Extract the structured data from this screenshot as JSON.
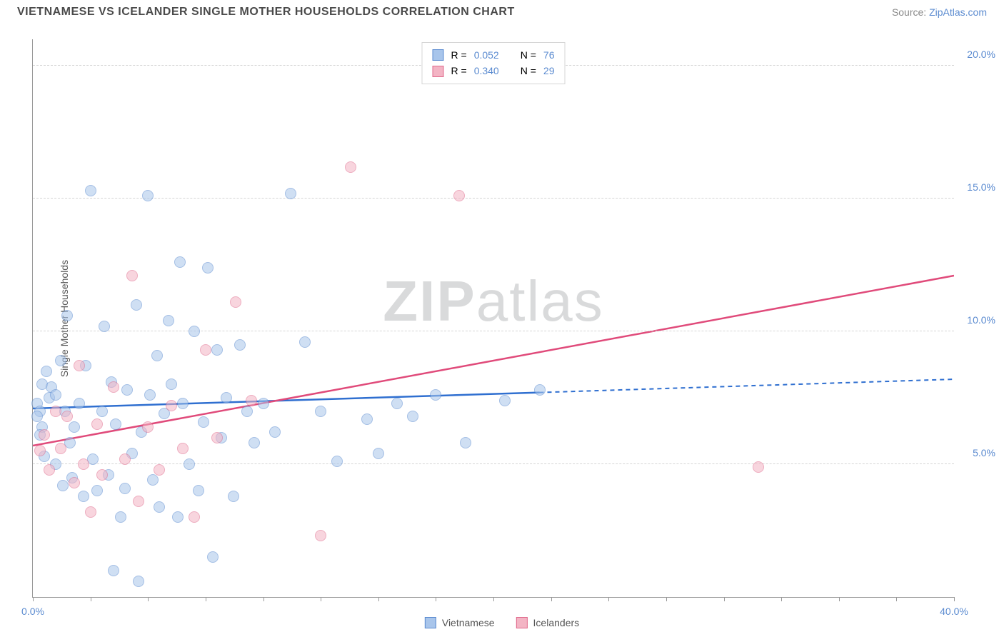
{
  "title_text": "VIETNAMESE VS ICELANDER SINGLE MOTHER HOUSEHOLDS CORRELATION CHART",
  "source_prefix": "Source: ",
  "source_link": "ZipAtlas.com",
  "ylabel_text": "Single Mother Households",
  "watermark_a": "ZIP",
  "watermark_b": "atlas",
  "chart": {
    "type": "scatter",
    "xlim": [
      0,
      40
    ],
    "ylim": [
      0,
      21
    ],
    "xtick_positions": [
      0,
      2.5,
      5,
      7.5,
      10,
      12.5,
      15,
      17.5,
      20,
      22.5,
      25,
      27.5,
      30,
      32.5,
      35,
      37.5,
      40
    ],
    "xtick_labels": [
      {
        "pos": 0,
        "label": "0.0%"
      },
      {
        "pos": 40,
        "label": "40.0%"
      }
    ],
    "ytick_gridlines": [
      5,
      10,
      15,
      20
    ],
    "ytick_labels": [
      {
        "pos": 5,
        "label": "5.0%"
      },
      {
        "pos": 10,
        "label": "10.0%"
      },
      {
        "pos": 15,
        "label": "15.0%"
      },
      {
        "pos": 20,
        "label": "20.0%"
      }
    ],
    "grid_color": "#d5d5d5",
    "axis_color": "#999999",
    "background_color": "#ffffff",
    "label_color": "#5b8bd0",
    "marker_radius": 8,
    "marker_opacity": 0.55
  },
  "series": [
    {
      "name": "Vietnamese",
      "fill_color": "#a8c5eb",
      "stroke_color": "#5b8bd0",
      "line_color": "#2f6fd0",
      "r_label": "R = ",
      "r_value": "0.052",
      "n_label": "N = ",
      "n_value": "76",
      "trend": {
        "x1": 0,
        "y1": 7.1,
        "x2_solid": 22,
        "y2_solid": 7.7,
        "x2_dash": 40,
        "y2_dash": 8.2
      },
      "points": [
        {
          "x": 0.2,
          "y": 7.3
        },
        {
          "x": 0.4,
          "y": 8.0
        },
        {
          "x": 0.3,
          "y": 7.0
        },
        {
          "x": 0.6,
          "y": 8.5
        },
        {
          "x": 0.4,
          "y": 6.4
        },
        {
          "x": 0.5,
          "y": 5.3
        },
        {
          "x": 0.7,
          "y": 7.5
        },
        {
          "x": 0.3,
          "y": 6.1
        },
        {
          "x": 0.8,
          "y": 7.9
        },
        {
          "x": 0.2,
          "y": 6.8
        },
        {
          "x": 1.0,
          "y": 7.6
        },
        {
          "x": 1.2,
          "y": 8.9
        },
        {
          "x": 1.0,
          "y": 5.0
        },
        {
          "x": 1.4,
          "y": 7.0
        },
        {
          "x": 1.3,
          "y": 4.2
        },
        {
          "x": 1.5,
          "y": 10.6
        },
        {
          "x": 1.6,
          "y": 5.8
        },
        {
          "x": 1.8,
          "y": 6.4
        },
        {
          "x": 1.7,
          "y": 4.5
        },
        {
          "x": 2.0,
          "y": 7.3
        },
        {
          "x": 2.2,
          "y": 3.8
        },
        {
          "x": 2.3,
          "y": 8.7
        },
        {
          "x": 2.5,
          "y": 15.3
        },
        {
          "x": 2.6,
          "y": 5.2
        },
        {
          "x": 2.8,
          "y": 4.0
        },
        {
          "x": 3.0,
          "y": 7.0
        },
        {
          "x": 3.1,
          "y": 10.2
        },
        {
          "x": 3.3,
          "y": 4.6
        },
        {
          "x": 3.4,
          "y": 8.1
        },
        {
          "x": 3.5,
          "y": 1.0
        },
        {
          "x": 3.6,
          "y": 6.5
        },
        {
          "x": 3.8,
          "y": 3.0
        },
        {
          "x": 4.0,
          "y": 4.1
        },
        {
          "x": 4.1,
          "y": 7.8
        },
        {
          "x": 4.3,
          "y": 5.4
        },
        {
          "x": 4.5,
          "y": 11.0
        },
        {
          "x": 4.6,
          "y": 0.6
        },
        {
          "x": 4.7,
          "y": 6.2
        },
        {
          "x": 5.0,
          "y": 15.1
        },
        {
          "x": 5.1,
          "y": 7.6
        },
        {
          "x": 5.2,
          "y": 4.4
        },
        {
          "x": 5.4,
          "y": 9.1
        },
        {
          "x": 5.5,
          "y": 3.4
        },
        {
          "x": 5.7,
          "y": 6.9
        },
        {
          "x": 5.9,
          "y": 10.4
        },
        {
          "x": 6.0,
          "y": 8.0
        },
        {
          "x": 6.3,
          "y": 3.0
        },
        {
          "x": 6.4,
          "y": 12.6
        },
        {
          "x": 6.5,
          "y": 7.3
        },
        {
          "x": 6.8,
          "y": 5.0
        },
        {
          "x": 7.0,
          "y": 10.0
        },
        {
          "x": 7.2,
          "y": 4.0
        },
        {
          "x": 7.4,
          "y": 6.6
        },
        {
          "x": 7.6,
          "y": 12.4
        },
        {
          "x": 7.8,
          "y": 1.5
        },
        {
          "x": 8.0,
          "y": 9.3
        },
        {
          "x": 8.2,
          "y": 6.0
        },
        {
          "x": 8.4,
          "y": 7.5
        },
        {
          "x": 8.7,
          "y": 3.8
        },
        {
          "x": 9.0,
          "y": 9.5
        },
        {
          "x": 9.3,
          "y": 7.0
        },
        {
          "x": 9.6,
          "y": 5.8
        },
        {
          "x": 10.0,
          "y": 7.3
        },
        {
          "x": 10.5,
          "y": 6.2
        },
        {
          "x": 11.2,
          "y": 15.2
        },
        {
          "x": 11.8,
          "y": 9.6
        },
        {
          "x": 12.5,
          "y": 7.0
        },
        {
          "x": 13.2,
          "y": 5.1
        },
        {
          "x": 14.5,
          "y": 6.7
        },
        {
          "x": 15.0,
          "y": 5.4
        },
        {
          "x": 15.8,
          "y": 7.3
        },
        {
          "x": 16.5,
          "y": 6.8
        },
        {
          "x": 17.5,
          "y": 7.6
        },
        {
          "x": 18.8,
          "y": 5.8
        },
        {
          "x": 20.5,
          "y": 7.4
        },
        {
          "x": 22.0,
          "y": 7.8
        }
      ]
    },
    {
      "name": "Icelanders",
      "fill_color": "#f3b4c4",
      "stroke_color": "#e06a8c",
      "line_color": "#e04a7a",
      "r_label": "R = ",
      "r_value": "0.340",
      "n_label": "N = ",
      "n_value": "29",
      "trend": {
        "x1": 0,
        "y1": 5.7,
        "x2_solid": 40,
        "y2_solid": 12.1,
        "x2_dash": 40,
        "y2_dash": 12.1
      },
      "points": [
        {
          "x": 0.3,
          "y": 5.5
        },
        {
          "x": 0.5,
          "y": 6.1
        },
        {
          "x": 0.7,
          "y": 4.8
        },
        {
          "x": 1.0,
          "y": 7.0
        },
        {
          "x": 1.2,
          "y": 5.6
        },
        {
          "x": 1.5,
          "y": 6.8
        },
        {
          "x": 1.8,
          "y": 4.3
        },
        {
          "x": 2.0,
          "y": 8.7
        },
        {
          "x": 2.2,
          "y": 5.0
        },
        {
          "x": 2.5,
          "y": 3.2
        },
        {
          "x": 2.8,
          "y": 6.5
        },
        {
          "x": 3.0,
          "y": 4.6
        },
        {
          "x": 3.5,
          "y": 7.9
        },
        {
          "x": 4.0,
          "y": 5.2
        },
        {
          "x": 4.3,
          "y": 12.1
        },
        {
          "x": 4.6,
          "y": 3.6
        },
        {
          "x": 5.0,
          "y": 6.4
        },
        {
          "x": 5.5,
          "y": 4.8
        },
        {
          "x": 6.0,
          "y": 7.2
        },
        {
          "x": 6.5,
          "y": 5.6
        },
        {
          "x": 7.0,
          "y": 3.0
        },
        {
          "x": 7.5,
          "y": 9.3
        },
        {
          "x": 8.0,
          "y": 6.0
        },
        {
          "x": 8.8,
          "y": 11.1
        },
        {
          "x": 9.5,
          "y": 7.4
        },
        {
          "x": 12.5,
          "y": 2.3
        },
        {
          "x": 13.8,
          "y": 16.2
        },
        {
          "x": 18.5,
          "y": 15.1
        },
        {
          "x": 31.5,
          "y": 4.9
        }
      ]
    }
  ],
  "legend_bottom": [
    {
      "label": "Vietnamese",
      "fill": "#a8c5eb",
      "stroke": "#5b8bd0"
    },
    {
      "label": "Icelanders",
      "fill": "#f3b4c4",
      "stroke": "#e06a8c"
    }
  ]
}
